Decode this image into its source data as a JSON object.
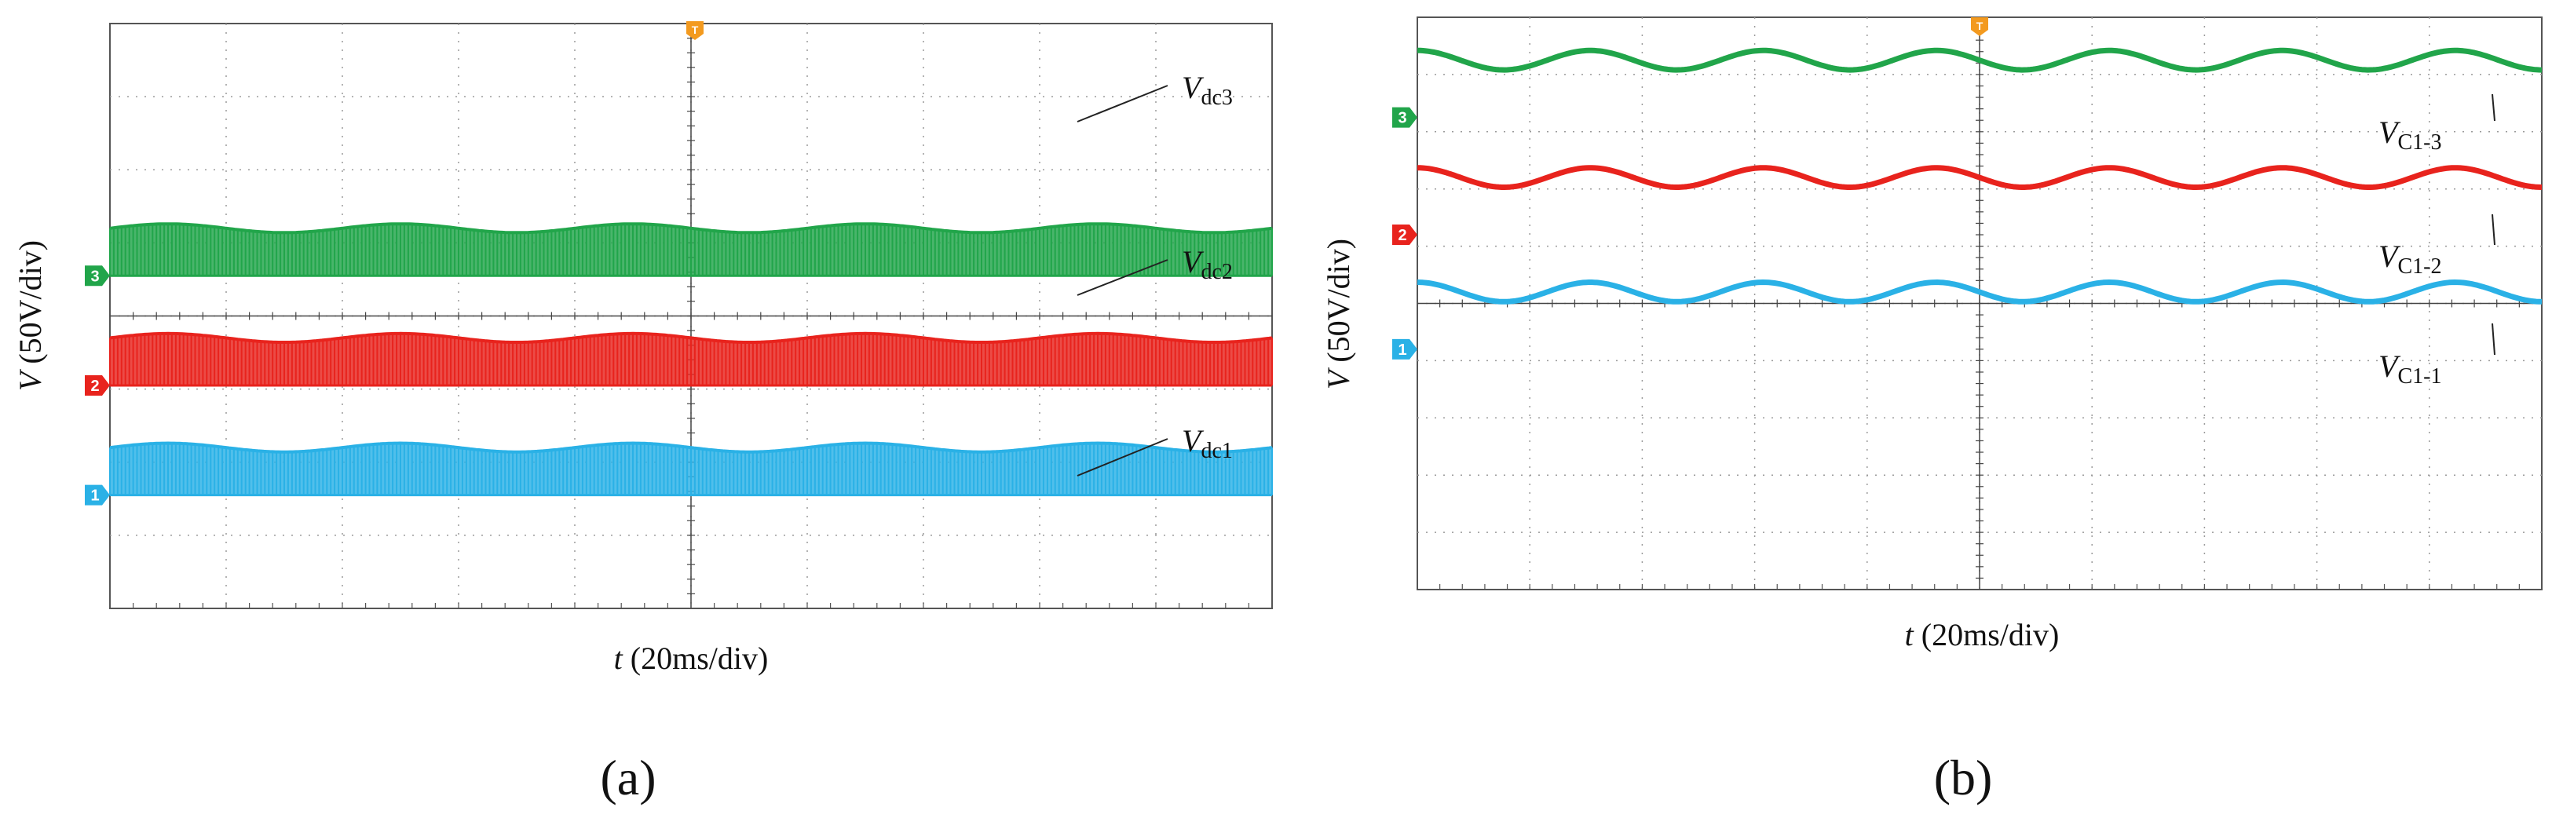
{
  "chart_data": [
    {
      "type": "line",
      "panel_label": "(a)",
      "xlabel": {
        "symbol": "t",
        "rest": " (20ms/div)"
      },
      "ylabel": {
        "symbol": "V",
        "rest": " (50V/div)"
      },
      "x_divisions": 10,
      "y_divisions": 8,
      "grid": true,
      "trigger_marker": "T",
      "series": [
        {
          "name": "Vdc3",
          "label_main": "V",
          "label_sub": "dc3",
          "channel": "3",
          "color": "#21a54a",
          "style": "switching",
          "top": 5.2,
          "bottom": 4.55,
          "ripple": 0.06,
          "cycles": 5
        },
        {
          "name": "Vdc2",
          "label_main": "V",
          "label_sub": "dc2",
          "channel": "2",
          "color": "#e8231d",
          "style": "switching",
          "top": 3.7,
          "bottom": 3.05,
          "ripple": 0.06,
          "cycles": 5
        },
        {
          "name": "Vdc1",
          "label_main": "V",
          "label_sub": "dc1",
          "channel": "1",
          "color": "#2ab1e6",
          "style": "switching",
          "top": 2.2,
          "bottom": 1.55,
          "ripple": 0.06,
          "cycles": 5
        }
      ]
    },
    {
      "type": "line",
      "panel_label": "(b)",
      "xlabel": {
        "symbol": "t",
        "rest": " (20ms/div)"
      },
      "ylabel": {
        "symbol": "V",
        "rest": " (50V/div)"
      },
      "x_divisions": 10,
      "y_divisions": 10,
      "grid": true,
      "trigger_marker": "T",
      "series": [
        {
          "name": "VC1-3",
          "label_main": "V",
          "label_sub": "C1-3",
          "channel": "3",
          "color": "#21a54a",
          "style": "sine",
          "center": 9.25,
          "amplitude": 0.17,
          "cycles": 6.5
        },
        {
          "name": "VC1-2",
          "label_main": "V",
          "label_sub": "C1-2",
          "channel": "2",
          "color": "#e8231d",
          "style": "sine",
          "center": 7.2,
          "amplitude": 0.17,
          "cycles": 6.5
        },
        {
          "name": "VC1-1",
          "label_main": "V",
          "label_sub": "C1-1",
          "channel": "1",
          "color": "#2ab1e6",
          "style": "sine",
          "center": 5.2,
          "amplitude": 0.17,
          "cycles": 6.5
        }
      ]
    }
  ]
}
